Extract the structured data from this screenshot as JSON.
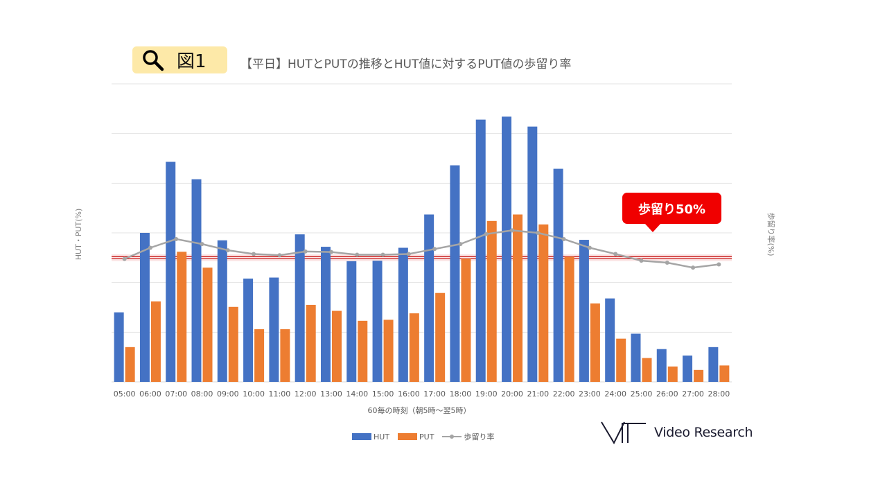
{
  "header": {
    "badge_label": "図1",
    "badge_icon": "search-icon",
    "title": "【平日】HUTとPUTの推移とHUT値に対するPUT値の歩留り率"
  },
  "callout": {
    "text": "歩留り50%",
    "value": 50,
    "color": "#f00000"
  },
  "brand": {
    "name": "Video Research"
  },
  "chart_data": {
    "type": "bar",
    "combo_line": true,
    "categories": [
      "05:00",
      "06:00",
      "07:00",
      "08:00",
      "09:00",
      "10:00",
      "11:00",
      "12:00",
      "13:00",
      "14:00",
      "15:00",
      "16:00",
      "17:00",
      "18:00",
      "19:00",
      "20:00",
      "21:00",
      "22:00",
      "23:00",
      "24:00",
      "25:00",
      "26:00",
      "27:00",
      "28:00"
    ],
    "series": [
      {
        "name": "HUT",
        "axis": "left",
        "color": "#4472c4",
        "values": [
          14.0,
          30.0,
          44.3,
          40.8,
          28.5,
          20.8,
          21.0,
          29.7,
          27.2,
          24.3,
          24.4,
          27.0,
          33.7,
          43.6,
          52.8,
          53.4,
          51.4,
          42.9,
          28.6,
          16.8,
          9.7,
          6.6,
          5.3,
          7.0
        ]
      },
      {
        "name": "PUT",
        "axis": "left",
        "color": "#ed7d31",
        "values": [
          7.0,
          16.2,
          26.2,
          23.0,
          15.1,
          10.6,
          10.6,
          15.5,
          14.3,
          12.3,
          12.5,
          13.8,
          17.9,
          24.8,
          32.4,
          33.7,
          31.7,
          25.2,
          15.8,
          8.7,
          4.8,
          3.1,
          2.4,
          3.3
        ]
      },
      {
        "name": "歩留り率",
        "axis": "right",
        "type": "line",
        "color": "#a5a5a5",
        "values": [
          49.5,
          54.0,
          57.5,
          55.5,
          53.0,
          51.5,
          51.0,
          52.5,
          52.3,
          51.2,
          51.2,
          51.5,
          53.5,
          55.5,
          59.5,
          61.0,
          60.0,
          57.5,
          54.0,
          51.5,
          48.8,
          48.0,
          46.0,
          47.3
        ]
      }
    ],
    "title": "【平日】HUTとPUTの推移とHUT値に対するPUT値の歩留り率",
    "xlabel": "60毎の時刻（朝5時～翌5時）",
    "ylabel": "HUT・PUT(%)",
    "y2label": "歩留り率(%)",
    "ylim": [
      0,
      60
    ],
    "y2lim": [
      0,
      120
    ],
    "grid": true,
    "reference_line": {
      "value": 50,
      "axis": "right",
      "color": "#c00000"
    },
    "legend": [
      "HUT",
      "PUT",
      "歩留り率"
    ],
    "legend_position": "bottom"
  }
}
